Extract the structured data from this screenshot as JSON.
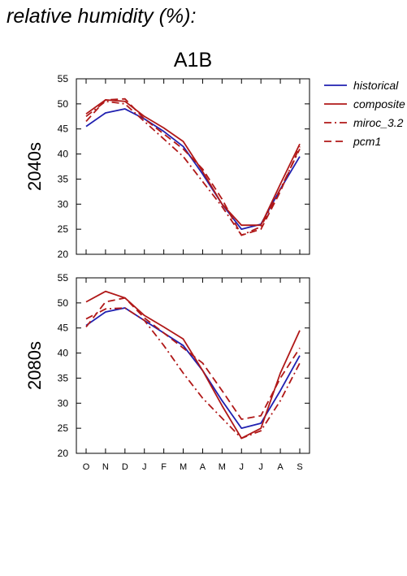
{
  "page_title": "relative humidity (%):",
  "chart_data": {
    "type": "line",
    "title": "A1B",
    "categories": [
      "O",
      "N",
      "D",
      "J",
      "F",
      "M",
      "A",
      "M",
      "J",
      "J",
      "A",
      "S"
    ],
    "ylim": [
      20,
      55
    ],
    "yticks": [
      20,
      25,
      30,
      35,
      40,
      45,
      50,
      55
    ],
    "grid": false,
    "legend_position": "right",
    "legend": [
      {
        "name": "historical",
        "color": "#2020b0",
        "dash": "solid"
      },
      {
        "name": "composite",
        "color": "#b01818",
        "dash": "solid"
      },
      {
        "name": "miroc_3.2",
        "color": "#b01818",
        "dash": "dashdot"
      },
      {
        "name": "pcm1",
        "color": "#b01818",
        "dash": "dashed"
      }
    ],
    "panels": [
      {
        "label": "2040s",
        "series": [
          {
            "name": "historical",
            "values": [
              45.5,
              48.2,
              49.0,
              47.0,
              44.5,
              41.5,
              36.0,
              30.0,
              25.0,
              26.0,
              33.0,
              39.5
            ]
          },
          {
            "name": "composite",
            "values": [
              48.0,
              50.8,
              50.5,
              47.5,
              45.2,
              42.5,
              36.5,
              30.0,
              25.8,
              25.8,
              34.0,
              42.0
            ]
          },
          {
            "name": "miroc_3.2",
            "values": [
              47.5,
              50.5,
              50.0,
              46.5,
              43.0,
              39.5,
              34.5,
              29.5,
              23.8,
              25.5,
              33.0,
              41.0
            ]
          },
          {
            "name": "pcm1",
            "values": [
              46.5,
              50.8,
              51.0,
              47.0,
              44.0,
              41.0,
              37.0,
              31.0,
              23.8,
              25.0,
              32.5,
              41.5
            ]
          }
        ]
      },
      {
        "label": "2080s",
        "series": [
          {
            "name": "historical",
            "values": [
              45.5,
              48.2,
              49.0,
              46.5,
              44.0,
              41.5,
              36.5,
              30.5,
              25.0,
              26.0,
              32.5,
              39.5
            ]
          },
          {
            "name": "composite",
            "values": [
              50.2,
              52.3,
              51.0,
              47.5,
              45.2,
              42.8,
              36.5,
              29.5,
              23.0,
              25.0,
              36.0,
              44.5
            ]
          },
          {
            "name": "miroc_3.2",
            "values": [
              46.8,
              48.8,
              49.0,
              46.5,
              41.5,
              36.0,
              31.0,
              27.0,
              23.0,
              24.5,
              30.5,
              38.0
            ]
          },
          {
            "name": "pcm1",
            "values": [
              45.2,
              50.2,
              51.0,
              47.0,
              44.0,
              41.0,
              38.0,
              32.5,
              26.8,
              27.5,
              35.0,
              41.0
            ]
          }
        ]
      }
    ]
  }
}
